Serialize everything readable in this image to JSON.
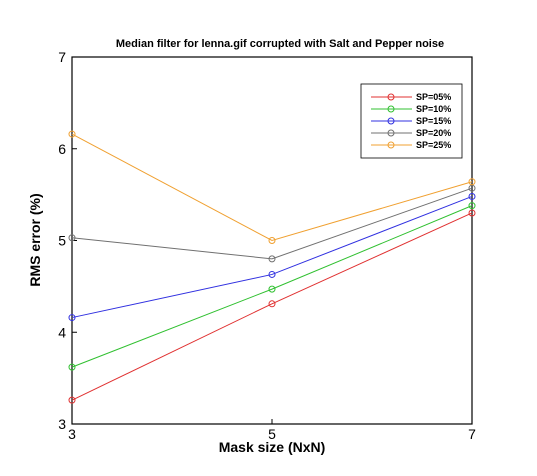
{
  "chart_data": {
    "type": "line",
    "title": "Median filter for lenna.gif corrupted with Salt and Pepper noise",
    "xlabel": "Mask size (NxN)",
    "ylabel": "RMS error (%)",
    "x": [
      3,
      5,
      7
    ],
    "xlim": [
      3,
      7
    ],
    "ylim": [
      3,
      7
    ],
    "xticks": [
      3,
      5,
      7
    ],
    "yticks": [
      3,
      4,
      5,
      6,
      7
    ],
    "grid": false,
    "legend_position": "top-right",
    "series": [
      {
        "name": "SP=05%",
        "color": "#e03030",
        "values": [
          3.26,
          4.31,
          5.3
        ]
      },
      {
        "name": "SP=10%",
        "color": "#30c030",
        "values": [
          3.62,
          4.47,
          5.38
        ]
      },
      {
        "name": "SP=15%",
        "color": "#3030e0",
        "values": [
          4.16,
          4.63,
          5.48
        ]
      },
      {
        "name": "SP=20%",
        "color": "#707070",
        "values": [
          5.03,
          4.8,
          5.57
        ]
      },
      {
        "name": "SP=25%",
        "color": "#f0a030",
        "values": [
          6.16,
          5.0,
          5.64
        ]
      }
    ]
  }
}
